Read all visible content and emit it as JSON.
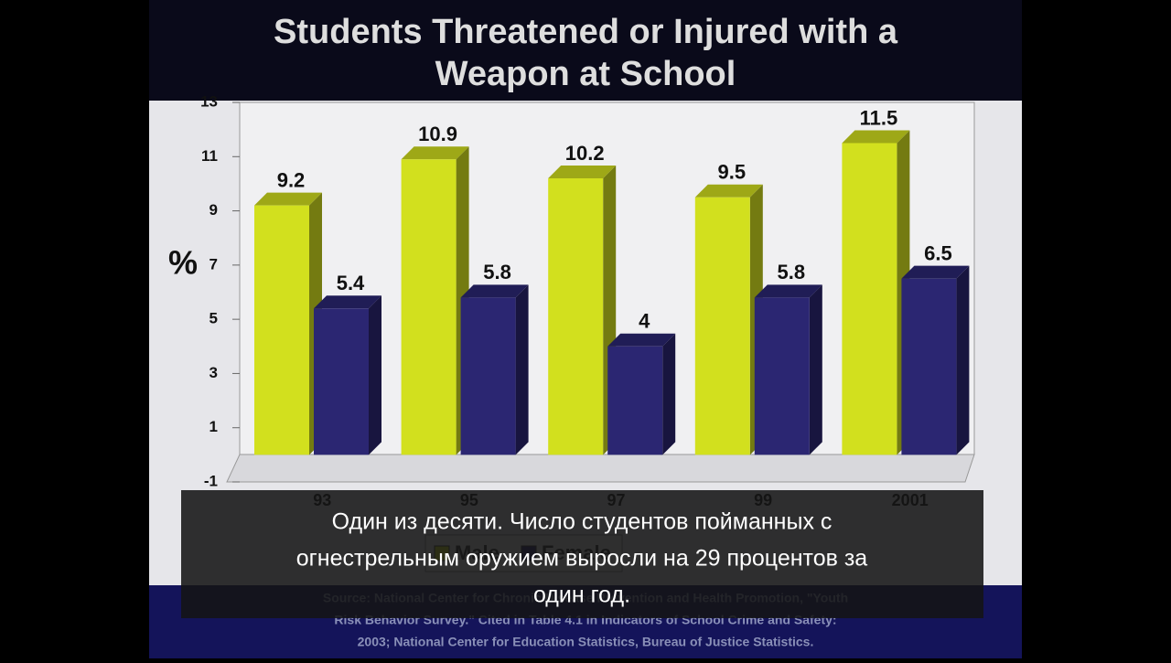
{
  "chart_data": {
    "type": "bar",
    "title": [
      "Students Threatened or Injured with a",
      "Weapon at School"
    ],
    "y_label": "%",
    "categories": [
      "93",
      "95",
      "97",
      "99",
      "2001"
    ],
    "series": [
      {
        "name": "Male",
        "color": "#d2e01e",
        "values": [
          9.2,
          10.9,
          10.2,
          9.5,
          11.5
        ]
      },
      {
        "name": "Female",
        "color": "#2b2672",
        "values": [
          5.4,
          5.8,
          4,
          5.8,
          6.5
        ]
      }
    ],
    "ylim": [
      -1,
      13
    ],
    "yticks": [
      -1,
      1,
      3,
      5,
      7,
      9,
      11,
      13
    ],
    "source": [
      "Source: National Center for Chronic Disease Prevention and Health Promotion, \"Youth",
      "Risk Behavior Survey.\" Cited in Table 4.1 in Indicators of School Crime and Safety:",
      "2003; National Center for Education Statistics, Bureau of Justice Statistics."
    ]
  },
  "subtitle": [
    "Один из десяти. Число студентов пойманных с",
    "огнестрельным оружием выросли на 29 процентов за",
    "один год."
  ]
}
